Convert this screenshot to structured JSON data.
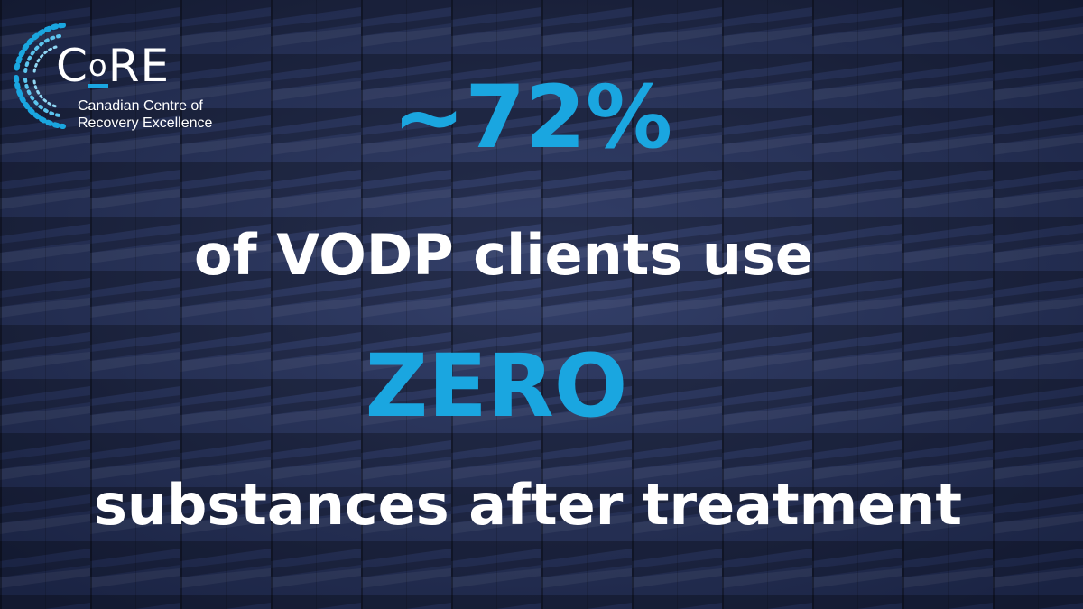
{
  "logo": {
    "wordmark_c": "C",
    "wordmark_o": "o",
    "wordmark_re": "RE",
    "subtitle_line1": "Canadian Centre of",
    "subtitle_line2": "Recovery Excellence"
  },
  "message": {
    "stat": "~72%",
    "line1": "of VODP clients use",
    "emphasis": "ZERO",
    "line2": "substances after treatment"
  },
  "colors": {
    "background": "#1f2a4c",
    "accent": "#1aa6e0",
    "text": "#ffffff"
  },
  "icons": {
    "logo_mark": "radial-burst-icon"
  }
}
